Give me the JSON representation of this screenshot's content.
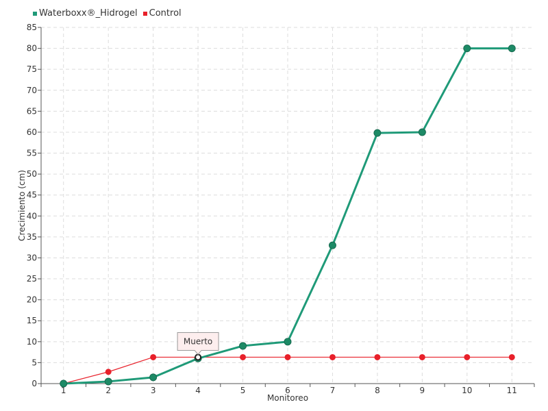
{
  "chart_data": {
    "type": "line",
    "categories": [
      "1",
      "2",
      "3",
      "4",
      "5",
      "6",
      "7",
      "8",
      "9",
      "10",
      "11"
    ],
    "series": [
      {
        "name": "Waterboxx®_Hidrogel",
        "color": "#1f9a78",
        "values": [
          0,
          0.5,
          1.5,
          6,
          9,
          10,
          33,
          59.8,
          60,
          80,
          80
        ]
      },
      {
        "name": "Control",
        "color": "#e8202a",
        "values": [
          0,
          2.8,
          6.3,
          6.3,
          6.3,
          6.3,
          6.3,
          6.3,
          6.3,
          6.3,
          6.3
        ]
      }
    ],
    "xlabel": "Monitoreo",
    "ylabel": "Crecimiento (cm)",
    "ylim": [
      0,
      85
    ],
    "yticks": [
      "0",
      "5",
      "10",
      "15",
      "20",
      "25",
      "30",
      "35",
      "40",
      "45",
      "50",
      "55",
      "60",
      "65",
      "70",
      "75",
      "80",
      "85"
    ],
    "grid": true,
    "legend_position": "top-left",
    "annotation": {
      "text": "Muerto",
      "series": "Control",
      "category": "4"
    }
  }
}
